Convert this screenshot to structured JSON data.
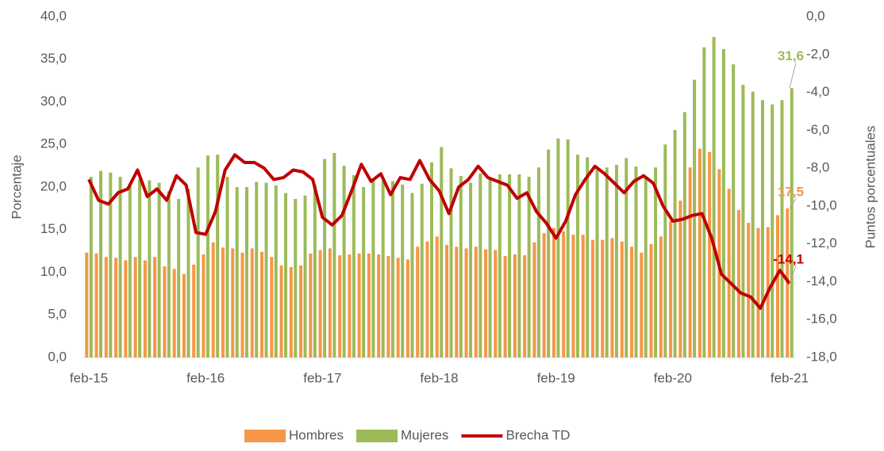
{
  "chart_data": {
    "type": "bar-line",
    "categories": [
      "feb-15",
      null,
      null,
      null,
      null,
      null,
      null,
      null,
      null,
      null,
      null,
      null,
      "feb-16",
      null,
      null,
      null,
      null,
      null,
      null,
      null,
      null,
      null,
      null,
      null,
      "feb-17",
      null,
      null,
      null,
      null,
      null,
      null,
      null,
      null,
      null,
      null,
      null,
      "feb-18",
      null,
      null,
      null,
      null,
      null,
      null,
      null,
      null,
      null,
      null,
      null,
      "feb-19",
      null,
      null,
      null,
      null,
      null,
      null,
      null,
      null,
      null,
      null,
      null,
      "feb-20",
      null,
      null,
      null,
      null,
      null,
      null,
      null,
      null,
      null,
      null,
      null,
      "feb-21"
    ],
    "ylabel": "Porcentaje",
    "y2label": "Puntos porcentuales",
    "ylim": [
      0,
      40
    ],
    "yticks": [
      {
        "value": 0,
        "label": "0,0"
      },
      {
        "value": 5,
        "label": "5,0"
      },
      {
        "value": 10,
        "label": "10,0"
      },
      {
        "value": 15,
        "label": "15,0"
      },
      {
        "value": 20,
        "label": "20,0"
      },
      {
        "value": 25,
        "label": "25,0"
      },
      {
        "value": 30,
        "label": "30,0"
      },
      {
        "value": 35,
        "label": "35,0"
      },
      {
        "value": 40,
        "label": "40,0"
      }
    ],
    "y2lim": [
      -18,
      0
    ],
    "y2ticks": [
      {
        "value": -18,
        "label": "-18,0"
      },
      {
        "value": -16,
        "label": "-16,0"
      },
      {
        "value": -14,
        "label": "-14,0"
      },
      {
        "value": -12,
        "label": "-12,0"
      },
      {
        "value": -10,
        "label": "-10,0"
      },
      {
        "value": -8,
        "label": "-8,0"
      },
      {
        "value": -6,
        "label": "-6,0"
      },
      {
        "value": -4,
        "label": "-4,0"
      },
      {
        "value": -2,
        "label": "-2,0"
      },
      {
        "value": 0,
        "label": "0,0"
      }
    ],
    "series": [
      {
        "name": "Hombres",
        "type": "bar",
        "color": "#f79646",
        "values": [
          12.3,
          12.2,
          11.8,
          11.7,
          11.4,
          11.8,
          11.4,
          11.8,
          10.7,
          10.4,
          9.8,
          10.9,
          12.1,
          13.5,
          12.9,
          12.8,
          12.3,
          12.8,
          12.4,
          11.8,
          10.8,
          10.6,
          10.8,
          12.2,
          12.6,
          12.8,
          12.0,
          12.1,
          12.2,
          12.2,
          12.1,
          11.9,
          11.7,
          11.5,
          13.0,
          13.6,
          14.2,
          13.2,
          13.0,
          12.8,
          13.0,
          12.7,
          12.6,
          11.9,
          12.1,
          12.0,
          13.5,
          14.6,
          15.2,
          14.8,
          14.4,
          14.4,
          13.8,
          13.8,
          14.0,
          13.6,
          13.0,
          12.3,
          13.3,
          14.2,
          16.0,
          18.4,
          22.3,
          24.5,
          24.1,
          22.1,
          19.8,
          17.3,
          15.8,
          15.2,
          15.3,
          16.7,
          17.5
        ],
        "value_labels": [
          null,
          null,
          null,
          null,
          null,
          null,
          null,
          null,
          null,
          null,
          null,
          null,
          null,
          null,
          null,
          null,
          null,
          null,
          null,
          null,
          null,
          null,
          null,
          null,
          null,
          null,
          null,
          null,
          null,
          null,
          null,
          null,
          null,
          null,
          null,
          null,
          null,
          null,
          null,
          null,
          null,
          null,
          null,
          null,
          null,
          null,
          null,
          null,
          null,
          null,
          null,
          null,
          null,
          null,
          null,
          null,
          null,
          null,
          null,
          null,
          null,
          null,
          null,
          null,
          null,
          null,
          null,
          null,
          null,
          null,
          null,
          null,
          "17,5"
        ]
      },
      {
        "name": "Mujeres",
        "type": "bar",
        "color": "#9bbb59",
        "values": [
          21.2,
          21.9,
          21.7,
          21.2,
          20.4,
          20.9,
          20.8,
          20.5,
          19.5,
          18.6,
          19.8,
          22.3,
          23.7,
          23.8,
          21.2,
          20.0,
          20.0,
          20.6,
          20.5,
          20.2,
          19.3,
          18.6,
          19.0,
          20.3,
          23.3,
          24.0,
          22.5,
          21.4,
          20.0,
          21.0,
          20.7,
          20.7,
          20.3,
          19.3,
          20.4,
          22.9,
          24.7,
          22.2,
          21.3,
          20.5,
          21.6,
          21.0,
          21.5,
          21.5,
          21.5,
          21.2,
          22.3,
          24.4,
          25.7,
          25.6,
          23.8,
          23.5,
          22.1,
          22.3,
          22.6,
          23.4,
          22.4,
          21.0,
          22.3,
          25.0,
          26.7,
          28.8,
          32.6,
          36.4,
          37.6,
          36.2,
          34.4,
          32.0,
          31.2,
          30.2,
          29.7,
          30.2,
          31.6
        ],
        "value_labels": [
          null,
          null,
          null,
          null,
          null,
          null,
          null,
          null,
          null,
          null,
          null,
          null,
          null,
          null,
          null,
          null,
          null,
          null,
          null,
          null,
          null,
          null,
          null,
          null,
          null,
          null,
          null,
          null,
          null,
          null,
          null,
          null,
          null,
          null,
          null,
          null,
          null,
          null,
          null,
          null,
          null,
          null,
          null,
          null,
          null,
          null,
          null,
          null,
          null,
          null,
          null,
          null,
          null,
          null,
          null,
          null,
          null,
          null,
          null,
          null,
          null,
          null,
          null,
          null,
          null,
          null,
          null,
          null,
          null,
          null,
          null,
          null,
          "31,6"
        ]
      },
      {
        "name": "Brecha TD",
        "type": "line",
        "axis": "y2",
        "color": "#c00000",
        "values": [
          -8.6,
          -9.7,
          -9.9,
          -9.3,
          -9.1,
          -8.1,
          -9.5,
          -9.1,
          -9.7,
          -8.4,
          -8.9,
          -11.4,
          -11.5,
          -10.3,
          -8.1,
          -7.3,
          -7.7,
          -7.7,
          -8.0,
          -8.6,
          -8.5,
          -8.1,
          -8.2,
          -8.6,
          -10.6,
          -11.0,
          -10.5,
          -9.2,
          -7.8,
          -8.7,
          -8.3,
          -9.4,
          -8.5,
          -8.6,
          -7.6,
          -8.6,
          -9.2,
          -10.4,
          -9.0,
          -8.6,
          -7.9,
          -8.5,
          -8.7,
          -8.9,
          -9.6,
          -9.3,
          -10.3,
          -10.9,
          -11.7,
          -10.8,
          -9.4,
          -8.6,
          -7.9,
          -8.3,
          -8.8,
          -9.3,
          -8.7,
          -8.4,
          -8.8,
          -10.0,
          -10.8,
          -10.7,
          -10.5,
          -10.4,
          -11.7,
          -13.6,
          -14.1,
          -14.6,
          -14.8,
          -15.4,
          -14.3,
          -13.4,
          -14.1
        ],
        "value_labels": [
          null,
          null,
          null,
          null,
          null,
          null,
          null,
          null,
          null,
          null,
          null,
          null,
          null,
          null,
          null,
          null,
          null,
          null,
          null,
          null,
          null,
          null,
          null,
          null,
          null,
          null,
          null,
          null,
          null,
          null,
          null,
          null,
          null,
          null,
          null,
          null,
          null,
          null,
          null,
          null,
          null,
          null,
          null,
          null,
          null,
          null,
          null,
          null,
          null,
          null,
          null,
          null,
          null,
          null,
          null,
          null,
          null,
          null,
          null,
          null,
          null,
          null,
          null,
          null,
          null,
          null,
          null,
          null,
          null,
          null,
          null,
          null,
          "-14,1"
        ]
      }
    ],
    "legend": "bottom"
  }
}
